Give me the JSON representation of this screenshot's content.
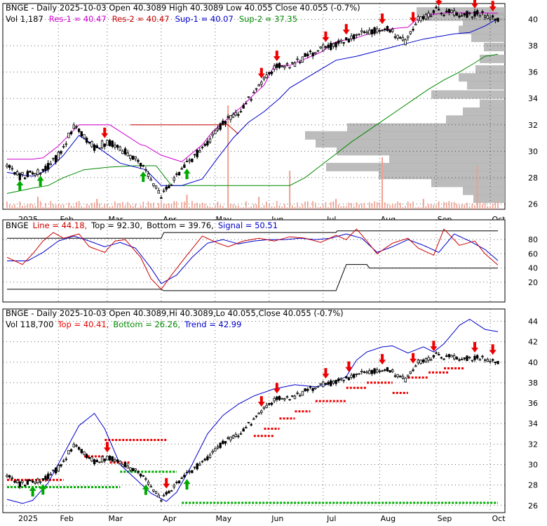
{
  "colors": {
    "up": "#000000",
    "down": "#000000",
    "grid": "#000000",
    "res1": "#d000d0",
    "res2": "#cc0000",
    "sup1": "#0000cc",
    "sup2": "#008800",
    "volume": "#f0a090",
    "profile": "#b0b0b0",
    "line": "#cc0000",
    "signal": "#0000cc",
    "topbot": "#000000",
    "trendline": "#0000cc",
    "arrow_up": "#00aa00",
    "arrow_down": "#ee0000"
  },
  "months": [
    "2025",
    "Feb",
    "Mar",
    "Apr",
    "May",
    "Jun",
    "Jul",
    "Aug",
    "Sep",
    "Oct"
  ],
  "chart_data": [
    {
      "type": "candlestick",
      "panel": "price",
      "header": {
        "ticker": "BNGE - Daily 2025-10-03 Open 40.3089  High 40.3089  Low 40.055  Close 40.055 (-0.7%)",
        "vol": "Vol 1,187",
        "res1": "Res-1 = 40.47",
        "res2": "Res-2 = 40.47",
        "sup1": "Sup-1 = 40.07",
        "sup2": "Sup-2 = 37.35"
      },
      "ylim": [
        25.6,
        41.2
      ],
      "yticks": [
        "40",
        "38",
        "36",
        "34",
        "32",
        "30",
        "28",
        "26"
      ],
      "anchors_x": [
        0,
        5,
        14,
        20,
        26,
        34,
        40,
        52,
        60,
        68,
        78,
        84,
        90,
        95,
        99,
        104,
        110,
        120,
        128,
        138,
        148,
        155,
        160,
        167,
        172,
        177,
        185,
        191
      ],
      "anchors_y": [
        28.8,
        28.1,
        28.5,
        29.6,
        31.9,
        30.3,
        30.7,
        29.1,
        26.6,
        28.6,
        30.6,
        32.2,
        32.9,
        34.1,
        35.1,
        36.4,
        36.4,
        37.6,
        38.1,
        38.9,
        39.3,
        38.3,
        40.0,
        40.6,
        40.6,
        40.4,
        40.4,
        40.06
      ],
      "res1_x": [
        0,
        10,
        14,
        20,
        28,
        40,
        52,
        54,
        60,
        68,
        76,
        80,
        86,
        92,
        96,
        100,
        104,
        110,
        116,
        122,
        128,
        136,
        144,
        150,
        156,
        160,
        166,
        172,
        180,
        191
      ],
      "res1_y": [
        29.4,
        29.4,
        29.5,
        30.4,
        32.0,
        32.0,
        30.5,
        30.4,
        29.7,
        29.2,
        30.5,
        31.5,
        32.5,
        33.5,
        34.3,
        35.0,
        36.5,
        36.5,
        37.0,
        37.5,
        38.3,
        38.6,
        39.1,
        39.3,
        39.4,
        40.1,
        40.4,
        40.5,
        40.5,
        40.47
      ],
      "res2_x": [
        86,
        87,
        88
      ],
      "res2_y": [
        32.0,
        32.0,
        32.0
      ],
      "res2_level": 32.0,
      "res2_from": 48,
      "res2_to": 86,
      "sup1_x": [
        0,
        6,
        10,
        16,
        22,
        28,
        36,
        44,
        54,
        60,
        62,
        68,
        76,
        82,
        88,
        94,
        100,
        106,
        110,
        116,
        122,
        128,
        136,
        144,
        150,
        156,
        162,
        168,
        174,
        180,
        186,
        191
      ],
      "sup1_y": [
        28.4,
        28.2,
        28.1,
        28.6,
        29.7,
        31.2,
        30.2,
        29.1,
        28.6,
        27.4,
        27.4,
        27.4,
        27.9,
        29.5,
        31.0,
        32.2,
        33.0,
        34.0,
        34.8,
        35.5,
        36.2,
        36.9,
        37.2,
        37.6,
        37.9,
        38.2,
        38.5,
        38.7,
        38.9,
        39.0,
        39.5,
        40.07
      ],
      "sup2_x": [
        0,
        10,
        16,
        22,
        30,
        40,
        50,
        58,
        64,
        72,
        84,
        96,
        110,
        116,
        122,
        128,
        134,
        140,
        146,
        152,
        158,
        164,
        170,
        176,
        182,
        186,
        191
      ],
      "sup2_y": [
        26.8,
        27.2,
        27.4,
        28.0,
        28.6,
        28.8,
        28.9,
        28.9,
        27.4,
        27.4,
        27.4,
        27.4,
        27.4,
        28.0,
        28.9,
        29.8,
        30.7,
        31.5,
        32.3,
        33.1,
        33.9,
        34.7,
        35.4,
        36.0,
        36.7,
        37.2,
        37.35
      ],
      "up_arrows": [
        5,
        13,
        53,
        70
      ],
      "down_arrows": [
        38,
        99,
        105,
        124,
        132,
        146,
        158,
        168,
        182,
        189
      ],
      "volume_spikes": [
        {
          "x": 86,
          "h": 1.0
        },
        {
          "x": 110,
          "h": 0.37
        },
        {
          "x": 146,
          "h": 0.5
        },
        {
          "x": 183,
          "h": 0.42
        },
        {
          "x": 12,
          "h": 0.12
        },
        {
          "x": 35,
          "h": 0.1
        },
        {
          "x": 70,
          "h": 0.14
        },
        {
          "x": 98,
          "h": 0.12
        },
        {
          "x": 128,
          "h": 0.1
        },
        {
          "x": 162,
          "h": 0.1
        }
      ],
      "profile": [
        {
          "price": 40.6,
          "w": 0.42
        },
        {
          "price": 40.2,
          "w": 0.38
        },
        {
          "price": 39.8,
          "w": 0.2
        },
        {
          "price": 39.2,
          "w": 0.22
        },
        {
          "price": 38.6,
          "w": 0.16
        },
        {
          "price": 37.9,
          "w": 0.1
        },
        {
          "price": 37.0,
          "w": 0.12
        },
        {
          "price": 36.2,
          "w": 0.14
        },
        {
          "price": 35.6,
          "w": 0.22
        },
        {
          "price": 35.0,
          "w": 0.18
        },
        {
          "price": 34.3,
          "w": 0.35
        },
        {
          "price": 33.6,
          "w": 0.12
        },
        {
          "price": 33.0,
          "w": 0.2
        },
        {
          "price": 32.4,
          "w": 0.28
        },
        {
          "price": 31.8,
          "w": 0.75
        },
        {
          "price": 31.2,
          "w": 0.95
        },
        {
          "price": 30.6,
          "w": 0.9
        },
        {
          "price": 30.0,
          "w": 0.8
        },
        {
          "price": 29.4,
          "w": 0.55
        },
        {
          "price": 28.8,
          "w": 0.85
        },
        {
          "price": 28.2,
          "w": 0.6
        },
        {
          "price": 27.6,
          "w": 0.35
        },
        {
          "price": 27.0,
          "w": 0.2
        },
        {
          "price": 26.4,
          "w": 0.15
        }
      ]
    },
    {
      "type": "line",
      "panel": "oscillator",
      "header": {
        "ticker": "BNGE",
        "line": "Line = 44.18,",
        "top": "Top = 92.30,",
        "bottom": "Bottom = 39.76,",
        "signal": "Signal = 50.51"
      },
      "ylim": [
        0,
        100
      ],
      "yticks": [
        "80",
        "60",
        "40",
        "20"
      ],
      "line_x": [
        0,
        6,
        10,
        14,
        18,
        22,
        28,
        32,
        38,
        42,
        46,
        52,
        56,
        60,
        64,
        70,
        76,
        82,
        86,
        92,
        98,
        104,
        110,
        116,
        122,
        128,
        132,
        136,
        140,
        144,
        150,
        156,
        160,
        166,
        170,
        176,
        182,
        186,
        191
      ],
      "line_y": [
        55,
        45,
        60,
        78,
        90,
        82,
        88,
        70,
        62,
        78,
        80,
        55,
        25,
        10,
        30,
        58,
        85,
        75,
        70,
        78,
        82,
        78,
        84,
        82,
        76,
        86,
        80,
        95,
        78,
        60,
        75,
        82,
        68,
        58,
        95,
        72,
        78,
        60,
        44.18
      ],
      "signal_x": [
        0,
        8,
        14,
        20,
        26,
        32,
        38,
        44,
        50,
        56,
        60,
        66,
        72,
        78,
        84,
        90,
        96,
        102,
        108,
        114,
        120,
        126,
        132,
        138,
        144,
        150,
        156,
        162,
        168,
        174,
        180,
        186,
        191
      ],
      "signal_y": [
        50,
        50,
        62,
        78,
        85,
        78,
        70,
        76,
        68,
        40,
        18,
        30,
        55,
        75,
        80,
        74,
        78,
        80,
        80,
        82,
        80,
        82,
        88,
        82,
        62,
        70,
        80,
        72,
        62,
        88,
        78,
        66,
        50.51
      ],
      "top_x": [
        0,
        60,
        61,
        128,
        128.5,
        191
      ],
      "top_y": [
        82,
        82,
        90,
        90,
        92.3,
        92.3
      ],
      "bottom_x": [
        0,
        60,
        61,
        128,
        132,
        140,
        141,
        191
      ],
      "bottom_y": [
        10,
        10,
        8,
        8,
        45,
        45,
        39.76,
        39.76
      ]
    },
    {
      "type": "candlestick",
      "panel": "trend",
      "header": {
        "ticker": "BNGE - Daily 2025-10-03 Open 40.3089,Hi 40.3089,Lo 40.055,Close 40.055 (-0.7%)",
        "vol": "Vol 118,700",
        "top": "Top = 40.41,",
        "bottom": "Bottom = 26.26,",
        "trend": "Trend = 42.99"
      },
      "ylim": [
        25.3,
        45.2
      ],
      "yticks": [
        "44",
        "42",
        "40",
        "38",
        "36",
        "34",
        "32",
        "30",
        "28",
        "26"
      ],
      "trend_x": [
        0,
        6,
        10,
        16,
        22,
        28,
        34,
        38,
        44,
        50,
        56,
        62,
        66,
        72,
        78,
        84,
        90,
        96,
        104,
        112,
        120,
        126,
        132,
        136,
        140,
        146,
        150,
        156,
        162,
        166,
        170,
        176,
        180,
        186,
        191
      ],
      "trend_y": [
        26.6,
        26.2,
        26.5,
        28.2,
        31.0,
        33.8,
        35.0,
        33.5,
        30.0,
        28.6,
        27.2,
        26.4,
        27.3,
        30.0,
        33.0,
        34.8,
        35.9,
        36.7,
        37.4,
        37.8,
        37.6,
        37.9,
        38.6,
        40.2,
        41.0,
        41.5,
        41.6,
        40.9,
        41.5,
        41.0,
        41.8,
        43.6,
        44.2,
        43.2,
        42.99
      ],
      "top_segments": [
        {
          "from": 0,
          "to": 22,
          "level": 28.5
        },
        {
          "from": 30,
          "to": 38,
          "level": 30.8
        },
        {
          "from": 38,
          "to": 62,
          "level": 32.4
        },
        {
          "from": 40,
          "to": 48,
          "level": 30.2
        },
        {
          "from": 96,
          "to": 104,
          "level": 32.8
        },
        {
          "from": 100,
          "to": 106,
          "level": 33.5
        },
        {
          "from": 106,
          "to": 112,
          "level": 34.5
        },
        {
          "from": 112,
          "to": 118,
          "level": 35.2
        },
        {
          "from": 120,
          "to": 132,
          "level": 36.2
        },
        {
          "from": 132,
          "to": 140,
          "level": 37.5
        },
        {
          "from": 140,
          "to": 150,
          "level": 38.0
        },
        {
          "from": 150,
          "to": 156,
          "level": 37.0
        },
        {
          "from": 156,
          "to": 164,
          "level": 38.5
        },
        {
          "from": 164,
          "to": 172,
          "level": 39.0
        },
        {
          "from": 170,
          "to": 178,
          "level": 39.4
        }
      ],
      "bottom_segments": [
        {
          "from": 0,
          "to": 44,
          "level": 27.8
        },
        {
          "from": 44,
          "to": 66,
          "level": 29.3
        },
        {
          "from": 68,
          "to": 191,
          "level": 26.26
        }
      ],
      "up_arrows": [
        10,
        14,
        54,
        70
      ],
      "down_arrows": [
        39,
        62,
        99,
        105,
        124,
        133,
        146,
        158,
        166,
        182,
        189
      ]
    }
  ]
}
